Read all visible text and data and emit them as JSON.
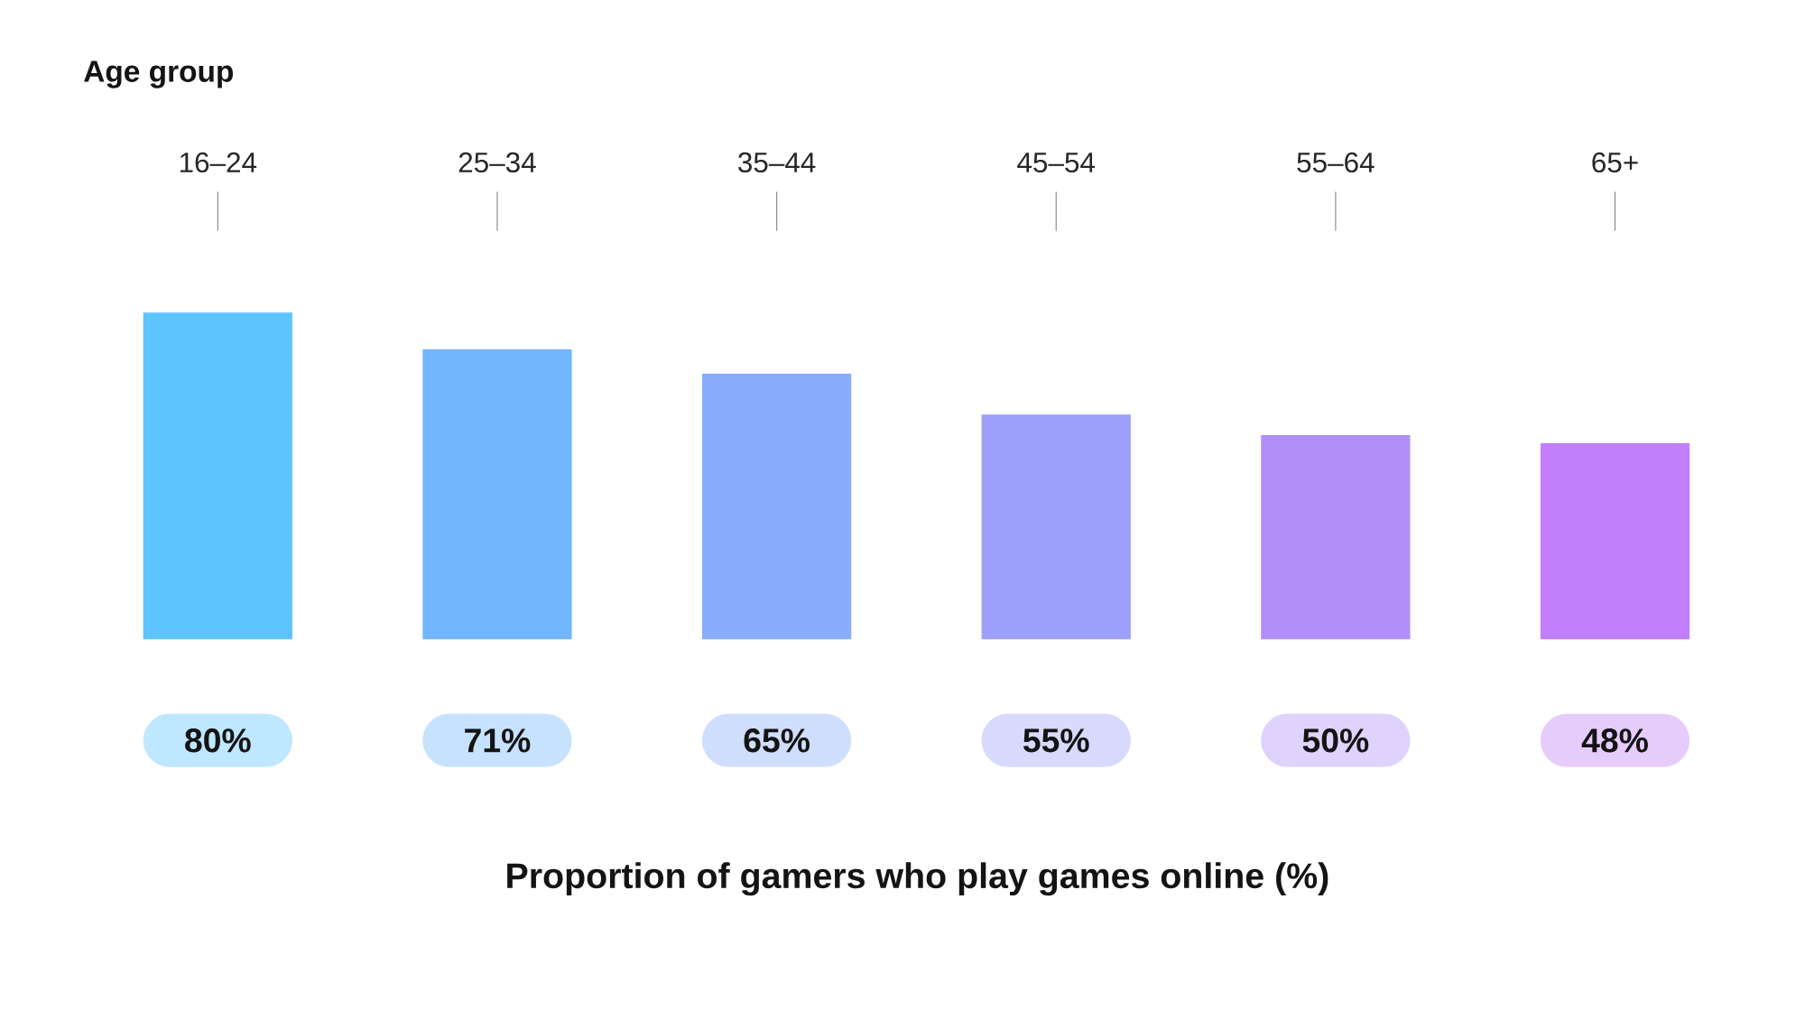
{
  "chart_data": {
    "type": "bar",
    "title": "Proportion of gamers who play games online (%)",
    "xlabel": "Age group",
    "categories": [
      "16–24",
      "25–34",
      "35–44",
      "45–54",
      "55–64",
      "65+"
    ],
    "values": [
      80,
      71,
      65,
      55,
      50,
      48
    ],
    "colors": [
      "#5ec4fe",
      "#72b6fd",
      "#8aacfc",
      "#9ca0fb",
      "#b08ffb",
      "#c17ffb"
    ],
    "value_labels": [
      "80%",
      "71%",
      "65%",
      "55%",
      "50%",
      "48%"
    ],
    "tick_labels": "x"
  }
}
